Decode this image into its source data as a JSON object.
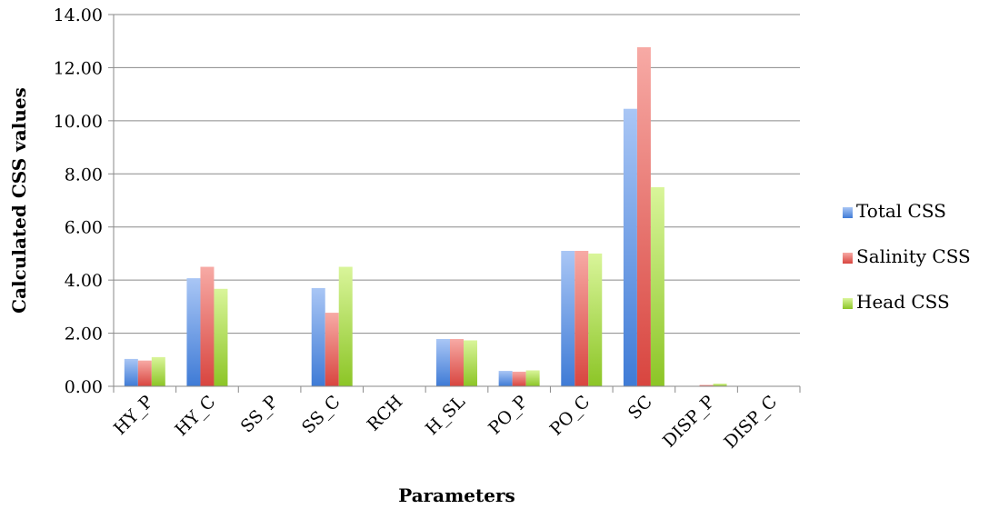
{
  "chart_data": {
    "type": "bar",
    "title": "",
    "xlabel": "Parameters",
    "ylabel": "Calculated CSS values",
    "ylim": [
      0,
      14
    ],
    "yticks": [
      "0.00",
      "2.00",
      "4.00",
      "6.00",
      "8.00",
      "10.00",
      "12.00",
      "14.00"
    ],
    "grid": true,
    "legend_position": "right",
    "categories": [
      "HY_P",
      "HY_C",
      "SS_P",
      "SS_C",
      "RCH",
      "H_SL",
      "PO_P",
      "PO_C",
      "SC",
      "DISP_P",
      "DISP_C"
    ],
    "series": [
      {
        "name": "Total CSS",
        "color": "#7fa9e8",
        "values": [
          1.03,
          4.07,
          0,
          3.7,
          0,
          1.78,
          0.58,
          5.1,
          10.45,
          0.01,
          0
        ]
      },
      {
        "name": "Salinity CSS",
        "color": "#ee7f79",
        "values": [
          0.97,
          4.5,
          0,
          2.77,
          0,
          1.78,
          0.55,
          5.1,
          12.77,
          0.05,
          0
        ]
      },
      {
        "name": "Head CSS",
        "color": "#b6e066",
        "values": [
          1.1,
          3.67,
          0,
          4.5,
          0,
          1.73,
          0.6,
          5.0,
          7.5,
          0.1,
          0
        ]
      }
    ]
  }
}
